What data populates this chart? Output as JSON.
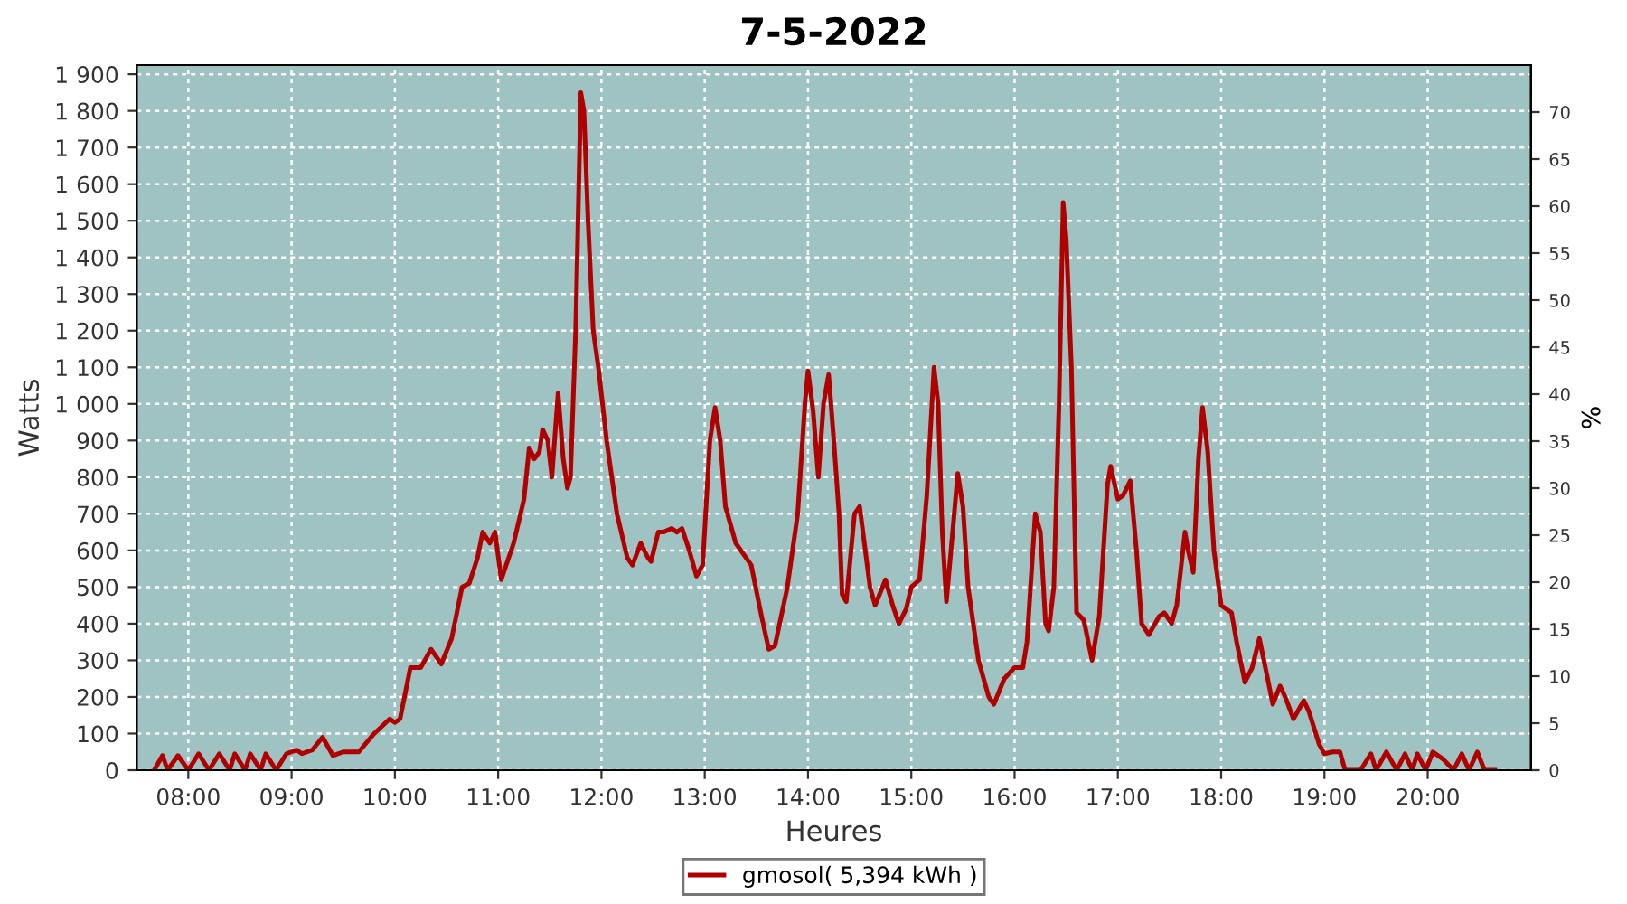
{
  "chart_data": {
    "type": "line",
    "title": "7-5-2022",
    "xlabel": "Heures",
    "ylabel": "Watts",
    "y2label": "%",
    "xlim": [
      7.5,
      21
    ],
    "ylim": [
      0,
      1925
    ],
    "y2lim": [
      0,
      75
    ],
    "xticks": [
      {
        "value": 8,
        "label": "08:00"
      },
      {
        "value": 9,
        "label": "09:00"
      },
      {
        "value": 10,
        "label": "10:00"
      },
      {
        "value": 11,
        "label": "11:00"
      },
      {
        "value": 12,
        "label": "12:00"
      },
      {
        "value": 13,
        "label": "13:00"
      },
      {
        "value": 14,
        "label": "14:00"
      },
      {
        "value": 15,
        "label": "15:00"
      },
      {
        "value": 16,
        "label": "16:00"
      },
      {
        "value": 17,
        "label": "17:00"
      },
      {
        "value": 18,
        "label": "18:00"
      },
      {
        "value": 19,
        "label": "19:00"
      },
      {
        "value": 20,
        "label": "20:00"
      }
    ],
    "yticks": [
      0,
      100,
      200,
      300,
      400,
      500,
      600,
      700,
      800,
      900,
      {
        "value": 1000,
        "label": "1 000"
      },
      {
        "value": 1100,
        "label": "1 100"
      },
      {
        "value": 1200,
        "label": "1 200"
      },
      {
        "value": 1300,
        "label": "1 300"
      },
      {
        "value": 1400,
        "label": "1 400"
      },
      {
        "value": 1500,
        "label": "1 500"
      },
      {
        "value": 1600,
        "label": "1 600"
      },
      {
        "value": 1700,
        "label": "1 700"
      },
      {
        "value": 1800,
        "label": "1 800"
      },
      {
        "value": 1900,
        "label": "1 900"
      }
    ],
    "y2ticks": [
      0,
      5,
      10,
      15,
      20,
      25,
      30,
      35,
      40,
      45,
      50,
      55,
      60,
      65,
      70
    ],
    "grid": true,
    "legend": "bottom",
    "line_style": "solid",
    "marker": "none",
    "series": [
      {
        "name": "gmosol( 5,394 kWh )",
        "color": "#b00000",
        "x": [
          7.67,
          7.75,
          7.8,
          7.9,
          8.0,
          8.1,
          8.2,
          8.3,
          8.4,
          8.45,
          8.55,
          8.6,
          8.7,
          8.75,
          8.85,
          8.95,
          9.05,
          9.1,
          9.2,
          9.3,
          9.4,
          9.5,
          9.65,
          9.8,
          9.95,
          10.0,
          10.05,
          10.15,
          10.25,
          10.35,
          10.45,
          10.55,
          10.65,
          10.72,
          10.8,
          10.85,
          10.92,
          10.97,
          11.03,
          11.15,
          11.25,
          11.3,
          11.35,
          11.4,
          11.43,
          11.48,
          11.52,
          11.58,
          11.63,
          11.67,
          11.7,
          11.75,
          11.8,
          11.83,
          11.87,
          11.92,
          11.97,
          12.05,
          12.15,
          12.25,
          12.3,
          12.38,
          12.45,
          12.48,
          12.55,
          12.6,
          12.68,
          12.73,
          12.78,
          12.85,
          12.92,
          12.98,
          13.05,
          13.1,
          13.15,
          13.2,
          13.3,
          13.45,
          13.55,
          13.62,
          13.68,
          13.8,
          13.9,
          13.97,
          14.0,
          14.05,
          14.1,
          14.15,
          14.2,
          14.25,
          14.3,
          14.33,
          14.37,
          14.45,
          14.5,
          14.6,
          14.65,
          14.75,
          14.82,
          14.88,
          14.95,
          15.0,
          15.08,
          15.15,
          15.22,
          15.26,
          15.3,
          15.34,
          15.4,
          15.45,
          15.5,
          15.55,
          15.65,
          15.75,
          15.8,
          15.9,
          16.0,
          16.08,
          16.12,
          16.2,
          16.25,
          16.3,
          16.33,
          16.38,
          16.43,
          16.47,
          16.5,
          16.55,
          16.6,
          16.67,
          16.75,
          16.82,
          16.9,
          16.93,
          17.0,
          17.05,
          17.12,
          17.18,
          17.23,
          17.3,
          17.4,
          17.45,
          17.52,
          17.57,
          17.65,
          17.68,
          17.73,
          17.78,
          17.82,
          17.87,
          17.93,
          18.0,
          18.1,
          18.15,
          18.23,
          18.3,
          18.37,
          18.45,
          18.5,
          18.57,
          18.62,
          18.7,
          18.8,
          18.85,
          18.95,
          19.0,
          19.08,
          19.15,
          19.2,
          19.35,
          19.45,
          19.5,
          19.6,
          19.7,
          19.78,
          19.85,
          19.9,
          19.98,
          20.05,
          20.15,
          20.25,
          20.33,
          20.4,
          20.48,
          20.55,
          20.65
        ],
        "values": [
          0,
          40,
          0,
          40,
          0,
          45,
          0,
          45,
          0,
          45,
          0,
          45,
          0,
          45,
          0,
          45,
          55,
          45,
          55,
          90,
          40,
          50,
          50,
          100,
          140,
          130,
          140,
          280,
          280,
          330,
          290,
          360,
          500,
          510,
          580,
          650,
          620,
          650,
          520,
          620,
          740,
          880,
          850,
          870,
          930,
          900,
          800,
          1030,
          850,
          770,
          800,
          1200,
          1850,
          1800,
          1500,
          1200,
          1100,
          900,
          700,
          580,
          560,
          620,
          580,
          570,
          650,
          650,
          660,
          650,
          660,
          600,
          530,
          560,
          900,
          990,
          900,
          720,
          620,
          560,
          420,
          330,
          340,
          500,
          700,
          1000,
          1090,
          980,
          800,
          1000,
          1080,
          900,
          700,
          480,
          460,
          700,
          720,
          500,
          450,
          520,
          450,
          400,
          440,
          500,
          520,
          750,
          1100,
          1000,
          650,
          460,
          650,
          810,
          720,
          500,
          300,
          200,
          180,
          250,
          280,
          280,
          350,
          700,
          650,
          400,
          380,
          500,
          1000,
          1550,
          1450,
          1100,
          430,
          410,
          300,
          420,
          780,
          830,
          740,
          750,
          790,
          600,
          400,
          370,
          420,
          430,
          400,
          450,
          650,
          600,
          540,
          850,
          990,
          870,
          600,
          450,
          430,
          350,
          240,
          280,
          360,
          250,
          180,
          230,
          200,
          140,
          190,
          160,
          70,
          45,
          50,
          50,
          0,
          0,
          45,
          0,
          50,
          0,
          45,
          0,
          45,
          0,
          50,
          30,
          0,
          45,
          0,
          50,
          0,
          0
        ]
      }
    ]
  }
}
